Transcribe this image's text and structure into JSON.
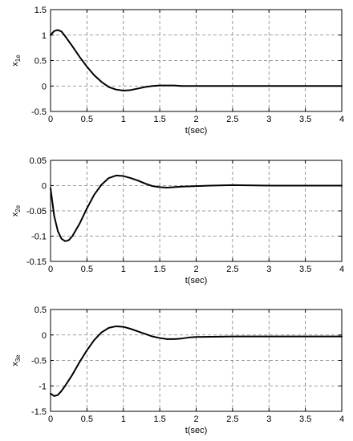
{
  "chart_data": [
    {
      "type": "line",
      "ylabel_main": "x",
      "ylabel_sub": "1e",
      "xlabel": "t(sec)",
      "xlim": [
        0,
        4
      ],
      "ylim": [
        -0.5,
        1.5
      ],
      "xticks": [
        0,
        0.5,
        1,
        1.5,
        2,
        2.5,
        3,
        3.5,
        4
      ],
      "xtick_labels": [
        "0",
        "0.5",
        "1",
        "1.5",
        "2",
        "2.5",
        "3",
        "3.5",
        "4"
      ],
      "yticks": [
        -0.5,
        0,
        0.5,
        1,
        1.5
      ],
      "ytick_labels": [
        "-0.5",
        "0",
        "0.5",
        "1",
        "1.5"
      ],
      "grid": true,
      "series": [
        {
          "color": "#000000",
          "x": [
            0,
            0.05,
            0.1,
            0.15,
            0.2,
            0.3,
            0.4,
            0.5,
            0.6,
            0.7,
            0.8,
            0.9,
            1.0,
            1.1,
            1.2,
            1.3,
            1.4,
            1.5,
            1.6,
            1.7,
            1.8,
            1.9,
            2.0,
            2.5,
            3.0,
            3.5,
            4.0
          ],
          "y": [
            1.0,
            1.08,
            1.1,
            1.07,
            0.98,
            0.78,
            0.57,
            0.38,
            0.21,
            0.08,
            -0.02,
            -0.07,
            -0.09,
            -0.08,
            -0.05,
            -0.02,
            0.0,
            0.01,
            0.01,
            0.01,
            0.0,
            0.0,
            0.0,
            0.0,
            0.0,
            0.0,
            0.0
          ]
        }
      ]
    },
    {
      "type": "line",
      "ylabel_main": "x",
      "ylabel_sub": "2e",
      "xlabel": "t(sec)",
      "xlim": [
        0,
        4
      ],
      "ylim": [
        -0.15,
        0.05
      ],
      "xticks": [
        0,
        0.5,
        1,
        1.5,
        2,
        2.5,
        3,
        3.5,
        4
      ],
      "xtick_labels": [
        "0",
        "0.5",
        "1",
        "1.5",
        "2",
        "2.5",
        "3",
        "3.5",
        "4"
      ],
      "yticks": [
        -0.15,
        -0.1,
        -0.05,
        0,
        0.05
      ],
      "ytick_labels": [
        "-0.15",
        "-0.1",
        "-0.05",
        "0",
        "0.05"
      ],
      "grid": true,
      "series": [
        {
          "color": "#000000",
          "x": [
            0,
            0.05,
            0.1,
            0.15,
            0.2,
            0.25,
            0.3,
            0.4,
            0.5,
            0.6,
            0.7,
            0.8,
            0.9,
            1.0,
            1.1,
            1.2,
            1.3,
            1.4,
            1.5,
            1.6,
            1.7,
            1.8,
            2.0,
            2.2,
            2.5,
            3.0,
            3.5,
            4.0
          ],
          "y": [
            -0.005,
            -0.06,
            -0.09,
            -0.105,
            -0.11,
            -0.108,
            -0.1,
            -0.075,
            -0.045,
            -0.018,
            0.002,
            0.015,
            0.02,
            0.019,
            0.015,
            0.01,
            0.004,
            -0.001,
            -0.003,
            -0.004,
            -0.003,
            -0.002,
            -0.001,
            0.0,
            0.001,
            0.0,
            0.0,
            0.0
          ]
        }
      ]
    },
    {
      "type": "line",
      "ylabel_main": "x",
      "ylabel_sub": "3e",
      "xlabel": "t(sec)",
      "xlim": [
        0,
        4
      ],
      "ylim": [
        -1.5,
        0.5
      ],
      "xticks": [
        0,
        0.5,
        1,
        1.5,
        2,
        2.5,
        3,
        3.5,
        4
      ],
      "xtick_labels": [
        "0",
        "0.5",
        "1",
        "1.5",
        "2",
        "2.5",
        "3",
        "3.5",
        "4"
      ],
      "yticks": [
        -1.5,
        -1,
        -0.5,
        0,
        0.5
      ],
      "ytick_labels": [
        "-1.5",
        "-1",
        "-0.5",
        "0",
        "0.5"
      ],
      "grid": true,
      "series": [
        {
          "color": "#000000",
          "x": [
            0,
            0.05,
            0.1,
            0.15,
            0.2,
            0.3,
            0.4,
            0.5,
            0.6,
            0.7,
            0.8,
            0.9,
            1.0,
            1.1,
            1.2,
            1.3,
            1.4,
            1.5,
            1.6,
            1.7,
            1.8,
            1.9,
            2.0,
            2.5,
            3.0,
            3.5,
            4.0
          ],
          "y": [
            -1.15,
            -1.2,
            -1.18,
            -1.1,
            -1.0,
            -0.78,
            -0.53,
            -0.3,
            -0.1,
            0.05,
            0.14,
            0.17,
            0.16,
            0.12,
            0.07,
            0.02,
            -0.03,
            -0.06,
            -0.08,
            -0.08,
            -0.07,
            -0.05,
            -0.04,
            -0.03,
            -0.03,
            -0.03,
            -0.03
          ]
        }
      ]
    }
  ]
}
